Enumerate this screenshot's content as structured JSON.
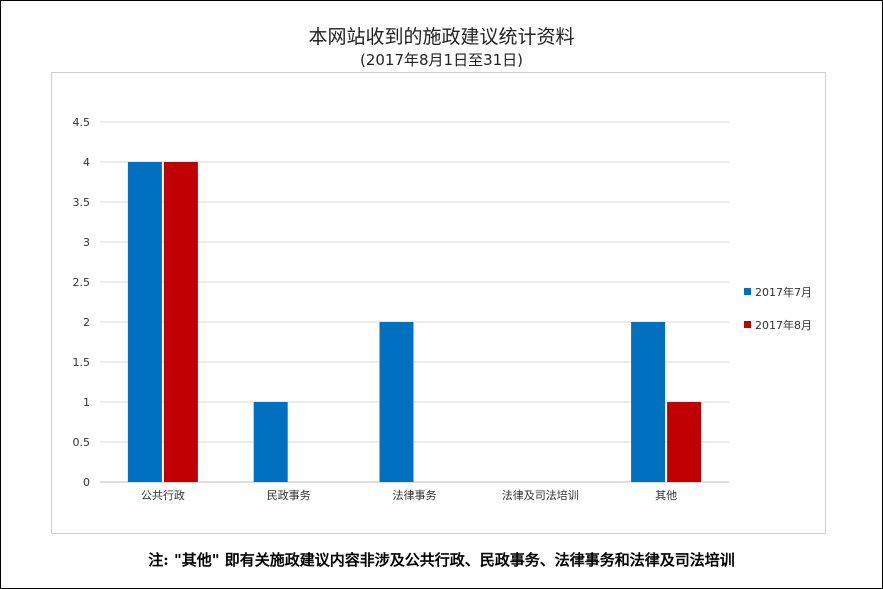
{
  "title": "本网站收到的施政建议统计资料",
  "subtitle": "(2017年8月1日至31日)",
  "footnote": "注: \"其他\" 即有关施政建议内容非涉及公共行政、民政事务、法律事务和法律及司法培训",
  "chart_data": {
    "type": "bar",
    "categories": [
      "公共行政",
      "民政事务",
      "法律事务",
      "法律及司法培训",
      "其他"
    ],
    "series": [
      {
        "name": "2017年7月",
        "color": "#0070c0",
        "values": [
          4,
          1,
          2,
          0,
          2
        ]
      },
      {
        "name": "2017年8月",
        "color": "#c00000",
        "values": [
          4,
          0,
          0,
          0,
          1
        ]
      }
    ],
    "yticks": [
      "0",
      "0.5",
      "1",
      "1.5",
      "2",
      "2.5",
      "3",
      "3.5",
      "4",
      "4.5"
    ],
    "ylim": [
      0,
      4.5
    ],
    "grid": true,
    "legend_position": "right"
  }
}
